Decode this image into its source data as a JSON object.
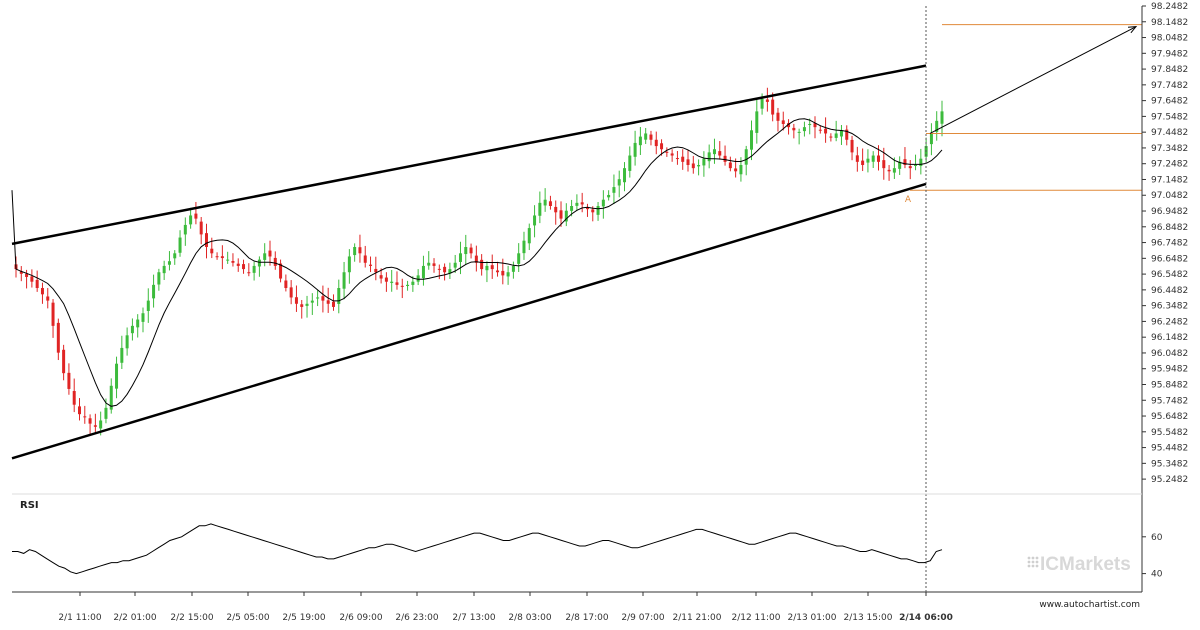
{
  "chart_data": {
    "type": "candlestick",
    "price_axis": {
      "ticks": [
        "98.2482",
        "98.1482",
        "98.0482",
        "97.9482",
        "97.8482",
        "97.7482",
        "97.6482",
        "97.5482",
        "97.4482",
        "97.3482",
        "97.2482",
        "97.1482",
        "97.0482",
        "96.9482",
        "96.8482",
        "96.7482",
        "96.6482",
        "96.5482",
        "96.4482",
        "96.3482",
        "96.2482",
        "96.1482",
        "96.0482",
        "95.9482",
        "95.8482",
        "95.7482",
        "95.6482",
        "95.5482",
        "95.4482",
        "95.3482",
        "95.2482"
      ],
      "range": [
        95.1982,
        98.2482
      ]
    },
    "time_axis": {
      "ticks": [
        "2/1 11:00",
        "2/2 01:00",
        "2/2 15:00",
        "2/5 05:00",
        "2/5 19:00",
        "2/6 09:00",
        "2/6 23:00",
        "2/7 13:00",
        "2/8 03:00",
        "2/8 17:00",
        "2/9 07:00",
        "2/11 21:00",
        "2/12 11:00",
        "2/13 01:00",
        "2/13 15:00",
        "2/14 06:00"
      ],
      "highlighted": "2/14 06:00"
    },
    "pattern": {
      "type": "rising channel",
      "upper_line": {
        "start": 96.74,
        "end": 97.87
      },
      "lower_line": {
        "start": 95.38,
        "end": 97.12
      }
    },
    "levels": [
      98.13,
      97.44,
      97.08
    ],
    "point_label": "A",
    "forecast_target": 98.13,
    "close_series": [
      96.58,
      96.55,
      96.53,
      96.5,
      96.46,
      96.42,
      96.38,
      96.22,
      96.05,
      95.92,
      95.82,
      95.72,
      95.66,
      95.64,
      95.6,
      95.58,
      95.62,
      95.7,
      95.84,
      95.98,
      96.08,
      96.16,
      96.22,
      96.26,
      96.3,
      96.38,
      96.48,
      96.56,
      96.6,
      96.63,
      96.68,
      96.78,
      96.86,
      96.92,
      96.9,
      96.8,
      96.72,
      96.68,
      96.66,
      96.65,
      96.64,
      96.62,
      96.6,
      96.58,
      96.56,
      96.6,
      96.64,
      96.68,
      96.66,
      96.6,
      96.52,
      96.46,
      96.4,
      96.36,
      96.34,
      96.36,
      96.38,
      96.4,
      96.38,
      96.36,
      96.34,
      96.46,
      96.56,
      96.66,
      96.72,
      96.68,
      96.62,
      96.6,
      96.56,
      96.52,
      96.5,
      96.5,
      96.48,
      96.47,
      96.48,
      96.5,
      96.54,
      96.6,
      96.62,
      96.6,
      96.58,
      96.56,
      96.58,
      96.62,
      96.68,
      96.72,
      96.68,
      96.62,
      96.58,
      96.6,
      96.58,
      96.56,
      96.54,
      96.56,
      96.6,
      96.68,
      96.76,
      96.84,
      96.92,
      97.0,
      97.02,
      96.98,
      96.94,
      96.9,
      96.95,
      96.98,
      97.0,
      96.99,
      96.96,
      96.94,
      96.98,
      97.02,
      97.05,
      97.1,
      97.15,
      97.22,
      97.3,
      97.38,
      97.42,
      97.44,
      97.4,
      97.36,
      97.34,
      97.32,
      97.3,
      97.28,
      97.26,
      97.24,
      97.22,
      97.24,
      97.28,
      97.32,
      97.34,
      97.3,
      97.26,
      97.22,
      97.2,
      97.24,
      97.34,
      97.46,
      97.58,
      97.66,
      97.64,
      97.56,
      97.52,
      97.5,
      97.48,
      97.46,
      97.45,
      97.48,
      97.5,
      97.48,
      97.46,
      97.44,
      97.42,
      97.44,
      97.46,
      97.4,
      97.32,
      97.26,
      97.24,
      97.28,
      97.3,
      97.26,
      97.22,
      97.2,
      97.22,
      97.26,
      97.24,
      97.22,
      97.24,
      97.28,
      97.36,
      97.44,
      97.52,
      97.58
    ]
  },
  "indicators": {
    "rsi_label": "RSI",
    "rsi_ticks": [
      "60",
      "40"
    ],
    "rsi_values": [
      52,
      52,
      51,
      53,
      52,
      50,
      48,
      46,
      44,
      43,
      41,
      40,
      41,
      42,
      43,
      44,
      45,
      46,
      46,
      47,
      47,
      48,
      49,
      50,
      52,
      54,
      56,
      58,
      59,
      60,
      62,
      64,
      66,
      66,
      67,
      66,
      65,
      64,
      63,
      62,
      61,
      60,
      59,
      58,
      57,
      56,
      55,
      54,
      53,
      52,
      51,
      50,
      49,
      49,
      48,
      48,
      49,
      50,
      51,
      52,
      53,
      54,
      54,
      55,
      56,
      56,
      55,
      54,
      53,
      52,
      53,
      54,
      55,
      56,
      57,
      58,
      59,
      60,
      61,
      62,
      62,
      61,
      60,
      59,
      58,
      58,
      59,
      60,
      61,
      62,
      62,
      61,
      60,
      59,
      58,
      57,
      56,
      55,
      55,
      56,
      57,
      58,
      58,
      57,
      56,
      55,
      54,
      54,
      55,
      56,
      57,
      58,
      59,
      60,
      61,
      62,
      63,
      64,
      64,
      63,
      62,
      61,
      60,
      59,
      58,
      57,
      56,
      56,
      57,
      58,
      59,
      60,
      61,
      62,
      62,
      61,
      60,
      59,
      58,
      57,
      56,
      55,
      55,
      54,
      53,
      52,
      52,
      53,
      52,
      51,
      50,
      49,
      48,
      48,
      47,
      46,
      46,
      47,
      52,
      53
    ]
  },
  "branding": {
    "logo_text": "ICMarkets",
    "website": "www.autochartist.com"
  },
  "colors": {
    "up": "#3cbb3c",
    "down": "#e02424",
    "channel": "#000000",
    "level": "#e08a3a",
    "ma": "#000000",
    "grid_axis": "#333333"
  }
}
